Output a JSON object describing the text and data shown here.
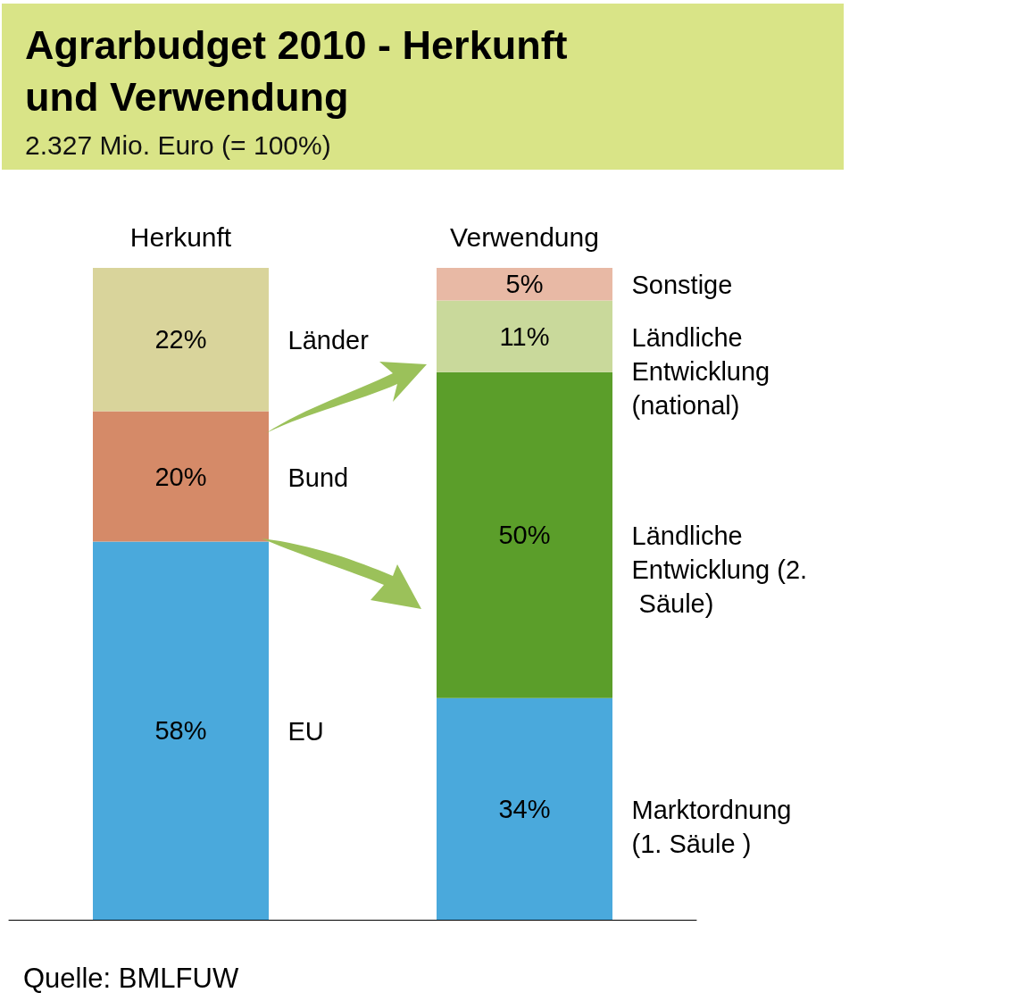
{
  "chart_data": {
    "type": "bar",
    "title": "Agrarbudget 2010 - Herkunft und Verwendung",
    "subtitle": "2.327 Mio. Euro (= 100%)",
    "categories": [
      "Herkunft",
      "Verwendung"
    ],
    "stacked": true,
    "series": [
      {
        "name": "EU",
        "color": "#4aa9dc",
        "values": [
          58,
          null
        ],
        "value_labels": [
          "58%",
          null
        ]
      },
      {
        "name": "Bund",
        "color": "#d58a68",
        "values": [
          20,
          null
        ],
        "value_labels": [
          "20%",
          null
        ]
      },
      {
        "name": "Länder",
        "color": "#d9d49b",
        "values": [
          22,
          null
        ],
        "value_labels": [
          "22%",
          null
        ]
      },
      {
        "name": "Marktordnung (1. Säule )",
        "color": "#4aa9dc",
        "values": [
          null,
          34
        ],
        "value_labels": [
          null,
          "34%"
        ]
      },
      {
        "name": "Ländliche Entwicklung (2. Säule)",
        "color": "#5b9e2a",
        "values": [
          null,
          50
        ],
        "value_labels": [
          null,
          "50%"
        ]
      },
      {
        "name": "Ländliche Entwicklung (national)",
        "color": "#c9d99b",
        "values": [
          null,
          11
        ],
        "value_labels": [
          null,
          "11%"
        ]
      },
      {
        "name": "Sonstige",
        "color": "#e8b9a5",
        "values": [
          null,
          5
        ],
        "value_labels": [
          null,
          "5%"
        ]
      }
    ],
    "annotations": [
      "Quelle: BMLFUW"
    ]
  }
}
